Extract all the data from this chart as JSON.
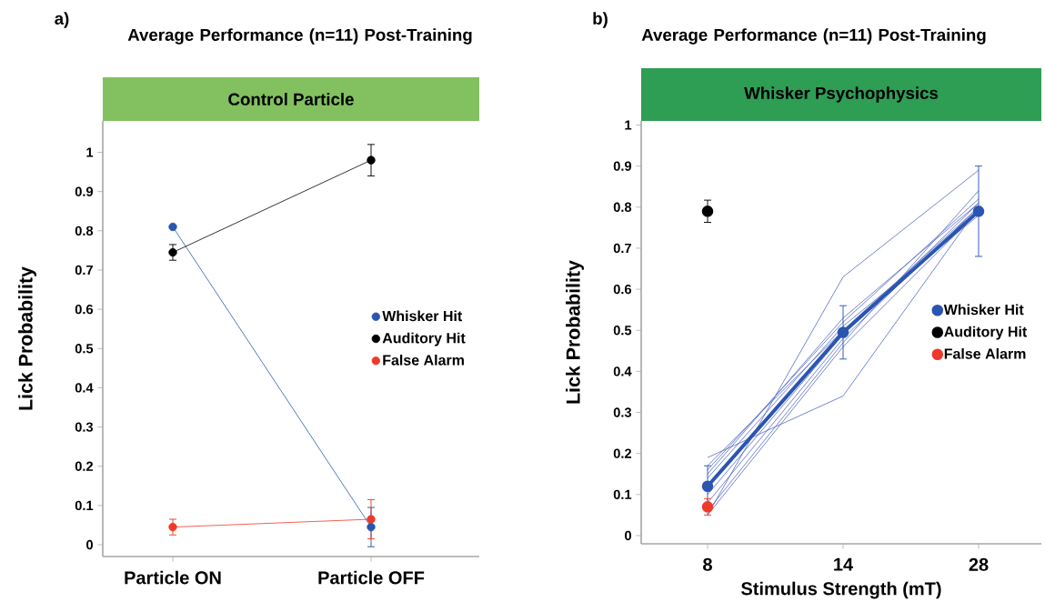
{
  "chart_data": [
    {
      "type": "line",
      "title": "Average Performance (n=11) Post-Training",
      "subtitle": "Control Particle",
      "ylabel": "Lick Probability",
      "annotations": [
        "a)"
      ],
      "categories": [
        "Particle ON",
        "Particle OFF"
      ],
      "ylim": [
        -0.03,
        1.08
      ],
      "yticks": [
        0,
        0.1,
        0.2,
        0.3,
        0.4,
        0.5,
        0.6,
        0.7,
        0.8,
        0.9,
        1
      ],
      "marker": "circle",
      "legend": "right",
      "grid": false,
      "series": [
        {
          "name": "Whisker Hit",
          "color": "#2a55b0",
          "values": [
            0.81,
            0.045
          ],
          "errors": [
            null,
            0.05
          ]
        },
        {
          "name": "Auditory Hit",
          "color": "#000000",
          "values": [
            0.745,
            0.98
          ],
          "errors": [
            0.02,
            0.04
          ]
        },
        {
          "name": "False Alarm",
          "color": "#ee3a2a",
          "values": [
            0.045,
            0.065
          ],
          "errors": [
            0.02,
            0.05
          ]
        }
      ]
    },
    {
      "type": "line",
      "title": "Average Performance (n=11) Post-Training",
      "subtitle": "Whisker Psychophysics",
      "xlabel": "Stimulus Strength (mT)",
      "ylabel": "Lick Probability",
      "annotations": [
        "b)"
      ],
      "categories": [
        "8",
        "14",
        "28"
      ],
      "ylim": [
        -0.02,
        1.01
      ],
      "yticks": [
        0,
        0.1,
        0.2,
        0.3,
        0.4,
        0.5,
        0.6,
        0.7,
        0.8,
        0.9,
        1
      ],
      "marker": "circle",
      "legend": "right",
      "grid": false,
      "series": [
        {
          "color": "#5468c4",
          "values": [
            0.05,
            0.63,
            0.89
          ],
          "marker": "none"
        },
        {
          "color": "#5468c4",
          "values": [
            0.19,
            0.34,
            0.8
          ],
          "marker": "none"
        },
        {
          "color": "#5468c4",
          "values": [
            0.16,
            0.52,
            0.82
          ],
          "marker": "none"
        },
        {
          "color": "#5468c4",
          "values": [
            0.1,
            0.49,
            0.81
          ],
          "marker": "none"
        },
        {
          "color": "#5468c4",
          "values": [
            0.06,
            0.47,
            0.84
          ],
          "marker": "none"
        },
        {
          "color": "#5468c4",
          "values": [
            0.14,
            0.51,
            0.78
          ],
          "marker": "none"
        },
        {
          "color": "#5468c4",
          "values": [
            0.17,
            0.5,
            0.8
          ],
          "marker": "none"
        },
        {
          "color": "#5468c4",
          "values": [
            0.08,
            0.48,
            0.8
          ],
          "marker": "none"
        },
        {
          "color": "#5468c4",
          "values": [
            0.15,
            0.53,
            0.81
          ],
          "marker": "none"
        },
        {
          "color": "#5468c4",
          "values": [
            0.05,
            0.46,
            0.79
          ],
          "marker": "none"
        },
        {
          "name": "Whisker Hit",
          "color": "#2a55b0",
          "values": [
            0.12,
            0.495,
            0.79
          ],
          "errors": [
            0.05,
            0.065,
            0.11
          ]
        },
        {
          "name": "Auditory Hit",
          "type": "scatter",
          "color": "#000000",
          "values": [
            0.79,
            null,
            null
          ],
          "errors": [
            0.027,
            null,
            null
          ]
        },
        {
          "name": "False Alarm",
          "type": "scatter",
          "color": "#ee3a2a",
          "values": [
            0.07,
            null,
            null
          ],
          "errors": [
            0.02,
            null,
            null
          ]
        }
      ]
    }
  ]
}
